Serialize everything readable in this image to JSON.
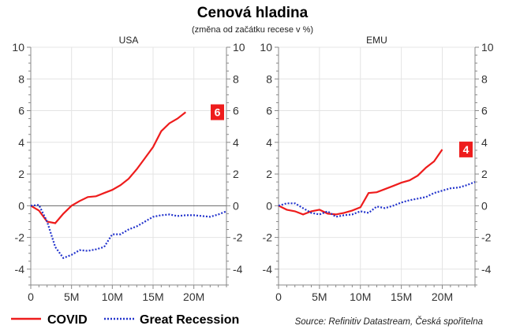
{
  "title": "Cenová hladina",
  "subtitle": "(změna od začátku recese v %)",
  "source": "Source: Refinitiv Datastream, Česká spořitelna",
  "legend": [
    {
      "name": "COVID",
      "color": "#ee1c1c",
      "style": "solid"
    },
    {
      "name": "Great Recession",
      "color": "#2233cc",
      "style": "dotted"
    }
  ],
  "chart_data": [
    {
      "type": "line",
      "title": "USA",
      "xlim": [
        0,
        24
      ],
      "ylim": [
        -5,
        10
      ],
      "xticks": [
        "0",
        "5M",
        "10M",
        "15M",
        "20M"
      ],
      "xtick_values": [
        0,
        5,
        10,
        15,
        20
      ],
      "yticks": [
        "10",
        "8",
        "6",
        "4",
        "2",
        "0",
        "-2",
        "-4"
      ],
      "ytick_values": [
        10,
        8,
        6,
        4,
        2,
        0,
        -2,
        -4
      ],
      "grid": true,
      "last_value_label": "6",
      "series": [
        {
          "name": "COVID",
          "x": [
            0,
            1,
            2,
            3,
            4,
            5,
            6,
            7,
            8,
            9,
            10,
            11,
            12,
            13,
            14,
            15,
            16,
            17,
            18,
            19
          ],
          "y": [
            0,
            -0.3,
            -1.0,
            -1.1,
            -0.5,
            0,
            0.3,
            0.55,
            0.6,
            0.8,
            1.0,
            1.3,
            1.7,
            2.3,
            3.0,
            3.7,
            4.7,
            5.2,
            5.5,
            5.9
          ]
        },
        {
          "name": "Great Recession",
          "x": [
            0,
            1,
            2,
            3,
            4,
            5,
            6,
            7,
            8,
            9,
            10,
            11,
            12,
            13,
            14,
            15,
            16,
            17,
            18,
            19,
            20,
            21,
            22,
            23,
            24
          ],
          "y": [
            0,
            0.05,
            -1.0,
            -2.6,
            -3.3,
            -3.1,
            -2.8,
            -2.85,
            -2.75,
            -2.6,
            -1.8,
            -1.8,
            -1.5,
            -1.3,
            -1.0,
            -0.7,
            -0.6,
            -0.55,
            -0.65,
            -0.6,
            -0.6,
            -0.65,
            -0.7,
            -0.55,
            -0.35
          ]
        }
      ]
    },
    {
      "type": "line",
      "title": "EMU",
      "xlim": [
        0,
        24
      ],
      "ylim": [
        -5,
        10
      ],
      "xticks": [
        "0",
        "5M",
        "10M",
        "15M",
        "20M"
      ],
      "xtick_values": [
        0,
        5,
        10,
        15,
        20
      ],
      "yticks": [
        "10",
        "8",
        "6",
        "4",
        "2",
        "0",
        "-2",
        "-4"
      ],
      "ytick_values": [
        10,
        8,
        6,
        4,
        2,
        0,
        -2,
        -4
      ],
      "grid": true,
      "last_value_label": "4",
      "series": [
        {
          "name": "COVID",
          "x": [
            0,
            1,
            2,
            3,
            4,
            5,
            6,
            7,
            8,
            9,
            10,
            11,
            12,
            13,
            14,
            15,
            16,
            17,
            18,
            19,
            20
          ],
          "y": [
            0,
            -0.25,
            -0.35,
            -0.55,
            -0.35,
            -0.25,
            -0.5,
            -0.55,
            -0.45,
            -0.3,
            -0.1,
            0.8,
            0.85,
            1.05,
            1.25,
            1.45,
            1.6,
            1.9,
            2.4,
            2.8,
            3.55
          ]
        },
        {
          "name": "Great Recession",
          "x": [
            0,
            1,
            2,
            3,
            4,
            5,
            6,
            7,
            8,
            9,
            10,
            11,
            12,
            13,
            14,
            15,
            16,
            17,
            18,
            19,
            20,
            21,
            22,
            23,
            24
          ],
          "y": [
            0,
            0.15,
            0.15,
            -0.15,
            -0.45,
            -0.55,
            -0.35,
            -0.7,
            -0.6,
            -0.55,
            -0.35,
            -0.45,
            -0.05,
            -0.15,
            0,
            0.2,
            0.35,
            0.45,
            0.55,
            0.8,
            0.95,
            1.1,
            1.15,
            1.3,
            1.5
          ]
        }
      ]
    }
  ]
}
